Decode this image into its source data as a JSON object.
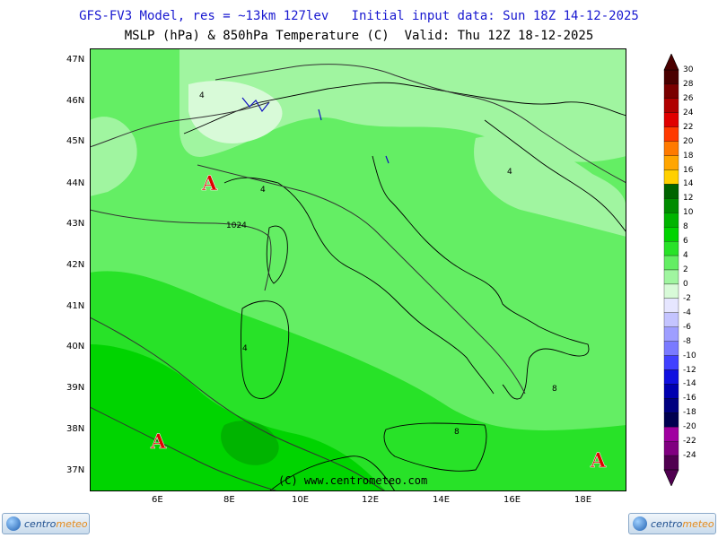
{
  "header": {
    "line1": "GFS-FV3 Model, res = ~13km 127lev   Initial input data: Sun 18Z 14-12-2025",
    "line2": "MSLP (hPa) & 850hPa Temperature (C)  Valid: Thu 12Z 18-12-2025"
  },
  "map": {
    "latitudes": [
      "47N",
      "46N",
      "45N",
      "44N",
      "43N",
      "42N",
      "41N",
      "40N",
      "39N",
      "38N",
      "37N"
    ],
    "longitudes": [
      "6E",
      "8E",
      "10E",
      "12E",
      "14E",
      "16E",
      "18E"
    ],
    "high_markers": [
      "A",
      "A",
      "A"
    ],
    "isobar_label": "1024",
    "isotherm_labels": [
      "4",
      "4",
      "4",
      "4",
      "8",
      "8"
    ],
    "credit": "(C) www.centrometeo.com"
  },
  "colorbar": {
    "labels": [
      "30",
      "28",
      "26",
      "24",
      "22",
      "20",
      "18",
      "16",
      "14",
      "12",
      "10",
      "8",
      "6",
      "4",
      "2",
      "0",
      "-2",
      "-4",
      "-6",
      "-8",
      "-10",
      "-12",
      "-14",
      "-16",
      "-18",
      "-20",
      "-22",
      "-24"
    ],
    "colors": [
      "#4a0000",
      "#7a0000",
      "#b00000",
      "#e00000",
      "#ff3a00",
      "#ff7a00",
      "#ffa500",
      "#ffd000",
      "#006400",
      "#008c00",
      "#00b400",
      "#00d400",
      "#28e228",
      "#64ee64",
      "#a0f5a0",
      "#d8fad8",
      "#e6e6ff",
      "#c4c4ff",
      "#9e9eff",
      "#7a7aff",
      "#4040ff",
      "#1010e0",
      "#0000b0",
      "#000080",
      "#000050",
      "#a000a0",
      "#800080",
      "#500050"
    ]
  },
  "logo": {
    "text_main": "centro",
    "text_accent": "meteo"
  }
}
